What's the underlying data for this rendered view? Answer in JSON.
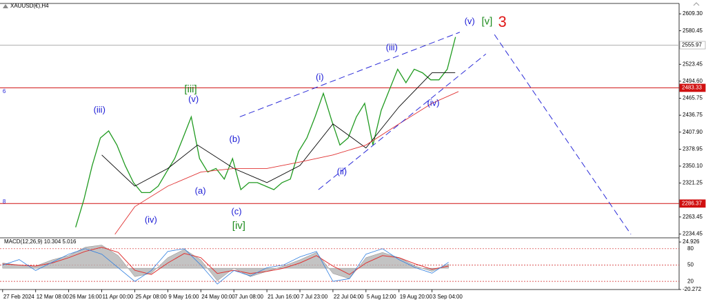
{
  "chart_data": [
    {
      "type": "line",
      "title": "XAUUSD(€),H4",
      "xlim": [
        -0.08,
        20.48
      ],
      "xticks": [
        {
          "value": 0,
          "label": "27 Feb 2024"
        },
        {
          "value": 1,
          "label": "12 Mar 08:00"
        },
        {
          "value": 2,
          "label": "26 Mar 16:00"
        },
        {
          "value": 3,
          "label": "11 Apr 00:00"
        },
        {
          "value": 4,
          "label": "25 Apr 08:00"
        },
        {
          "value": 5,
          "label": "9 May 16:00"
        },
        {
          "value": 6,
          "label": "24 May 00:00"
        },
        {
          "value": 7,
          "label": "7 Jun 08:00"
        },
        {
          "value": 8,
          "label": "21 Jun 16:00"
        },
        {
          "value": 9,
          "label": "7 Jul 23:00"
        },
        {
          "value": 10,
          "label": "22 Jul 04:00"
        },
        {
          "value": 11,
          "label": "5 Aug 12:00"
        },
        {
          "value": 12,
          "label": "19 Aug 20:00"
        },
        {
          "value": 13,
          "label": "3 Sep 04:00"
        }
      ],
      "ylim": [
        2228,
        2627
      ],
      "yticks": [
        {
          "value": 2609.3,
          "label": "2609.30"
        },
        {
          "value": 2580.45,
          "label": "2580.45"
        },
        {
          "value": 2523.45,
          "label": "2523.45"
        },
        {
          "value": 2494.6,
          "label": "2494.60"
        },
        {
          "value": 2465.75,
          "label": "2465.75"
        },
        {
          "value": 2436.75,
          "label": "2436.75"
        },
        {
          "value": 2407.9,
          "label": "2407.90"
        },
        {
          "value": 2378.95,
          "label": "2378.95"
        },
        {
          "value": 2350.1,
          "label": "2350.10"
        },
        {
          "value": 2321.25,
          "label": "2321.25"
        },
        {
          "value": 2263.45,
          "label": "2263.45"
        },
        {
          "value": 2234.45,
          "label": "2234.45"
        }
      ],
      "series": [
        {
          "color": "#1f9a1f",
          "width": 1.3,
          "x": [
            2.21,
            2.46,
            2.71,
            2.96,
            3.21,
            3.46,
            3.71,
            3.96,
            4.21,
            4.46,
            4.71,
            4.96,
            5.21,
            5.46,
            5.71,
            5.96,
            6.21,
            6.46,
            6.71,
            6.96,
            7.21,
            7.46,
            7.71,
            7.96,
            8.21,
            8.46,
            8.71,
            8.96,
            9.21,
            9.46,
            9.71,
            9.96,
            10.21,
            10.46,
            10.71,
            10.96,
            11.21,
            11.46,
            11.71,
            11.96,
            12.21,
            12.46,
            12.71,
            12.96,
            13.21,
            13.46,
            13.71
          ],
          "values": [
            2246,
            2293,
            2351,
            2398,
            2410,
            2386,
            2351,
            2322,
            2305,
            2305,
            2316,
            2340,
            2363,
            2398,
            2434,
            2363,
            2340,
            2346,
            2328,
            2363,
            2310,
            2322,
            2322,
            2316,
            2310,
            2322,
            2328,
            2375,
            2398,
            2434,
            2474,
            2428,
            2386,
            2398,
            2434,
            2457,
            2386,
            2445,
            2480,
            2515,
            2492,
            2515,
            2509,
            2497,
            2497,
            2515,
            2570
          ]
        },
        {
          "color": "#000000",
          "width": 0.9,
          "x": [
            3,
            4,
            5,
            5.9,
            7,
            8,
            9,
            10,
            11,
            12,
            13,
            13.7
          ],
          "values": [
            2369,
            2316,
            2346,
            2386,
            2346,
            2322,
            2351,
            2422,
            2381,
            2451,
            2509,
            2509
          ]
        },
        {
          "color": "#e03030",
          "width": 0.9,
          "x": [
            3.4,
            4,
            5,
            6,
            7,
            8,
            9,
            10,
            11,
            12,
            13,
            13.8
          ],
          "values": [
            2234,
            2281,
            2316,
            2340,
            2346,
            2346,
            2357,
            2369,
            2386,
            2422,
            2457,
            2477
          ]
        }
      ],
      "hlines": [
        {
          "value": 2555.97,
          "color": "#b0b0b0",
          "box": "#ffffff",
          "text_color": "#000000"
        },
        {
          "value": 2483.33,
          "color": "#d01010",
          "box": "#d01010",
          "text_color": "#ffffff"
        },
        {
          "value": 2286.37,
          "color": "#d01010",
          "box": "#d01010",
          "text_color": "#ffffff"
        }
      ],
      "trendlines": [
        {
          "x": [
            7.18,
            13.84
          ],
          "y": [
            2434,
            2578
          ],
          "color": "#2a2ad8"
        },
        {
          "x": [
            9.56,
            14.63
          ],
          "y": [
            2310,
            2541
          ],
          "color": "#2a2ad8"
        },
        {
          "x": [
            14.89,
            19.02
          ],
          "y": [
            2574,
            2234
          ],
          "color": "#2a2ad8"
        }
      ],
      "annotations": [
        {
          "text": "(iii)",
          "x": 2.75,
          "y": 2445,
          "color": "#1c1cd6",
          "size": 13
        },
        {
          "text": "[iii]",
          "x": 5.5,
          "y": 2480,
          "color": "#1e8c1e",
          "size": 15
        },
        {
          "text": "(v)",
          "x": 5.62,
          "y": 2463,
          "color": "#1c1cd6",
          "size": 13
        },
        {
          "text": "(iv)",
          "x": 4.3,
          "y": 2258,
          "color": "#1c1cd6",
          "size": 13
        },
        {
          "text": "(a)",
          "x": 5.82,
          "y": 2307,
          "color": "#1c1cd6",
          "size": 13
        },
        {
          "text": "(b)",
          "x": 6.86,
          "y": 2395,
          "color": "#1c1cd6",
          "size": 13
        },
        {
          "text": "(c)",
          "x": 6.92,
          "y": 2272,
          "color": "#1c1cd6",
          "size": 13
        },
        {
          "text": "[iv]",
          "x": 6.95,
          "y": 2248,
          "color": "#1e8c1e",
          "size": 15
        },
        {
          "text": "(i)",
          "x": 9.48,
          "y": 2501,
          "color": "#1c1cd6",
          "size": 13
        },
        {
          "text": "(ii)",
          "x": 10.12,
          "y": 2340,
          "color": "#1c1cd6",
          "size": 13
        },
        {
          "text": "(iii)",
          "x": 11.6,
          "y": 2551,
          "color": "#1c1cd6",
          "size": 13
        },
        {
          "text": "(iv)",
          "x": 12.85,
          "y": 2457,
          "color": "#1c1cd6",
          "size": 13
        },
        {
          "text": "(v)",
          "x": 13.98,
          "y": 2596,
          "color": "#1c1cd6",
          "size": 13
        },
        {
          "text": "[v]",
          "x": 14.5,
          "y": 2596,
          "color": "#1e8c1e",
          "size": 15
        },
        {
          "text": "3",
          "x": 15.0,
          "y": 2594,
          "color": "#e01818",
          "size": 22
        },
        {
          "text": "6",
          "x": 0,
          "y": 2477,
          "color": "#1c1cd6",
          "size": 8
        },
        {
          "text": "8",
          "x": 0,
          "y": 2289,
          "color": "#1c1cd6",
          "size": 8
        }
      ]
    },
    {
      "type": "area",
      "title": "MACD(12,26,9) 10.304 5.016",
      "ylim": [
        -20.272,
        28.9
      ],
      "yticks": [
        24.926,
        -20.272
      ],
      "y2lim": [
        5,
        100
      ],
      "y2ticks": [
        80,
        50,
        20
      ],
      "series": [
        {
          "color": "#b4b4b4",
          "x": [
            0,
            0.5,
            1,
            1.5,
            2,
            2.5,
            3,
            3.5,
            4,
            4.5,
            5,
            5.5,
            6,
            6.5,
            7,
            7.5,
            8,
            8.5,
            9,
            9.5,
            10,
            10.5,
            11,
            11.5,
            12,
            12.5,
            13,
            13.5
          ],
          "values": [
            5,
            3,
            2,
            8,
            12,
            20,
            22,
            12,
            -8,
            -5,
            10,
            18,
            8,
            -12,
            0,
            -8,
            -3,
            2,
            8,
            15,
            -5,
            -10,
            10,
            15,
            10,
            2,
            -3,
            4
          ]
        },
        {
          "color": "#e03030",
          "kind": "line",
          "width": 1,
          "x": [
            0,
            0.5,
            1,
            1.5,
            2,
            2.5,
            3,
            3.5,
            4,
            4.5,
            5,
            5.5,
            6,
            6.5,
            7,
            7.5,
            8,
            8.5,
            9,
            9.5,
            10,
            10.5,
            11,
            11.5,
            12,
            12.5,
            13,
            13.5
          ],
          "values": [
            4,
            3,
            2,
            5,
            10,
            16,
            20,
            15,
            -2,
            -6,
            5,
            14,
            10,
            -5,
            -2,
            -5,
            -3,
            0,
            5,
            12,
            2,
            -6,
            5,
            12,
            10,
            4,
            -1,
            2
          ]
        },
        {
          "color": "#2f7fe0",
          "kind": "line",
          "axis": "y2",
          "width": 0.8,
          "x": [
            0,
            0.5,
            1,
            1.5,
            2,
            2.5,
            3,
            3.5,
            4,
            4.5,
            5,
            5.5,
            6,
            6.5,
            7,
            7.5,
            8,
            8.5,
            9,
            9.5,
            10,
            10.5,
            11,
            11.5,
            12,
            12.5,
            13,
            13.5
          ],
          "values": [
            50,
            60,
            40,
            55,
            70,
            80,
            70,
            45,
            20,
            40,
            75,
            80,
            50,
            15,
            40,
            30,
            45,
            50,
            65,
            75,
            20,
            25,
            70,
            80,
            60,
            45,
            35,
            55
          ]
        }
      ]
    }
  ]
}
